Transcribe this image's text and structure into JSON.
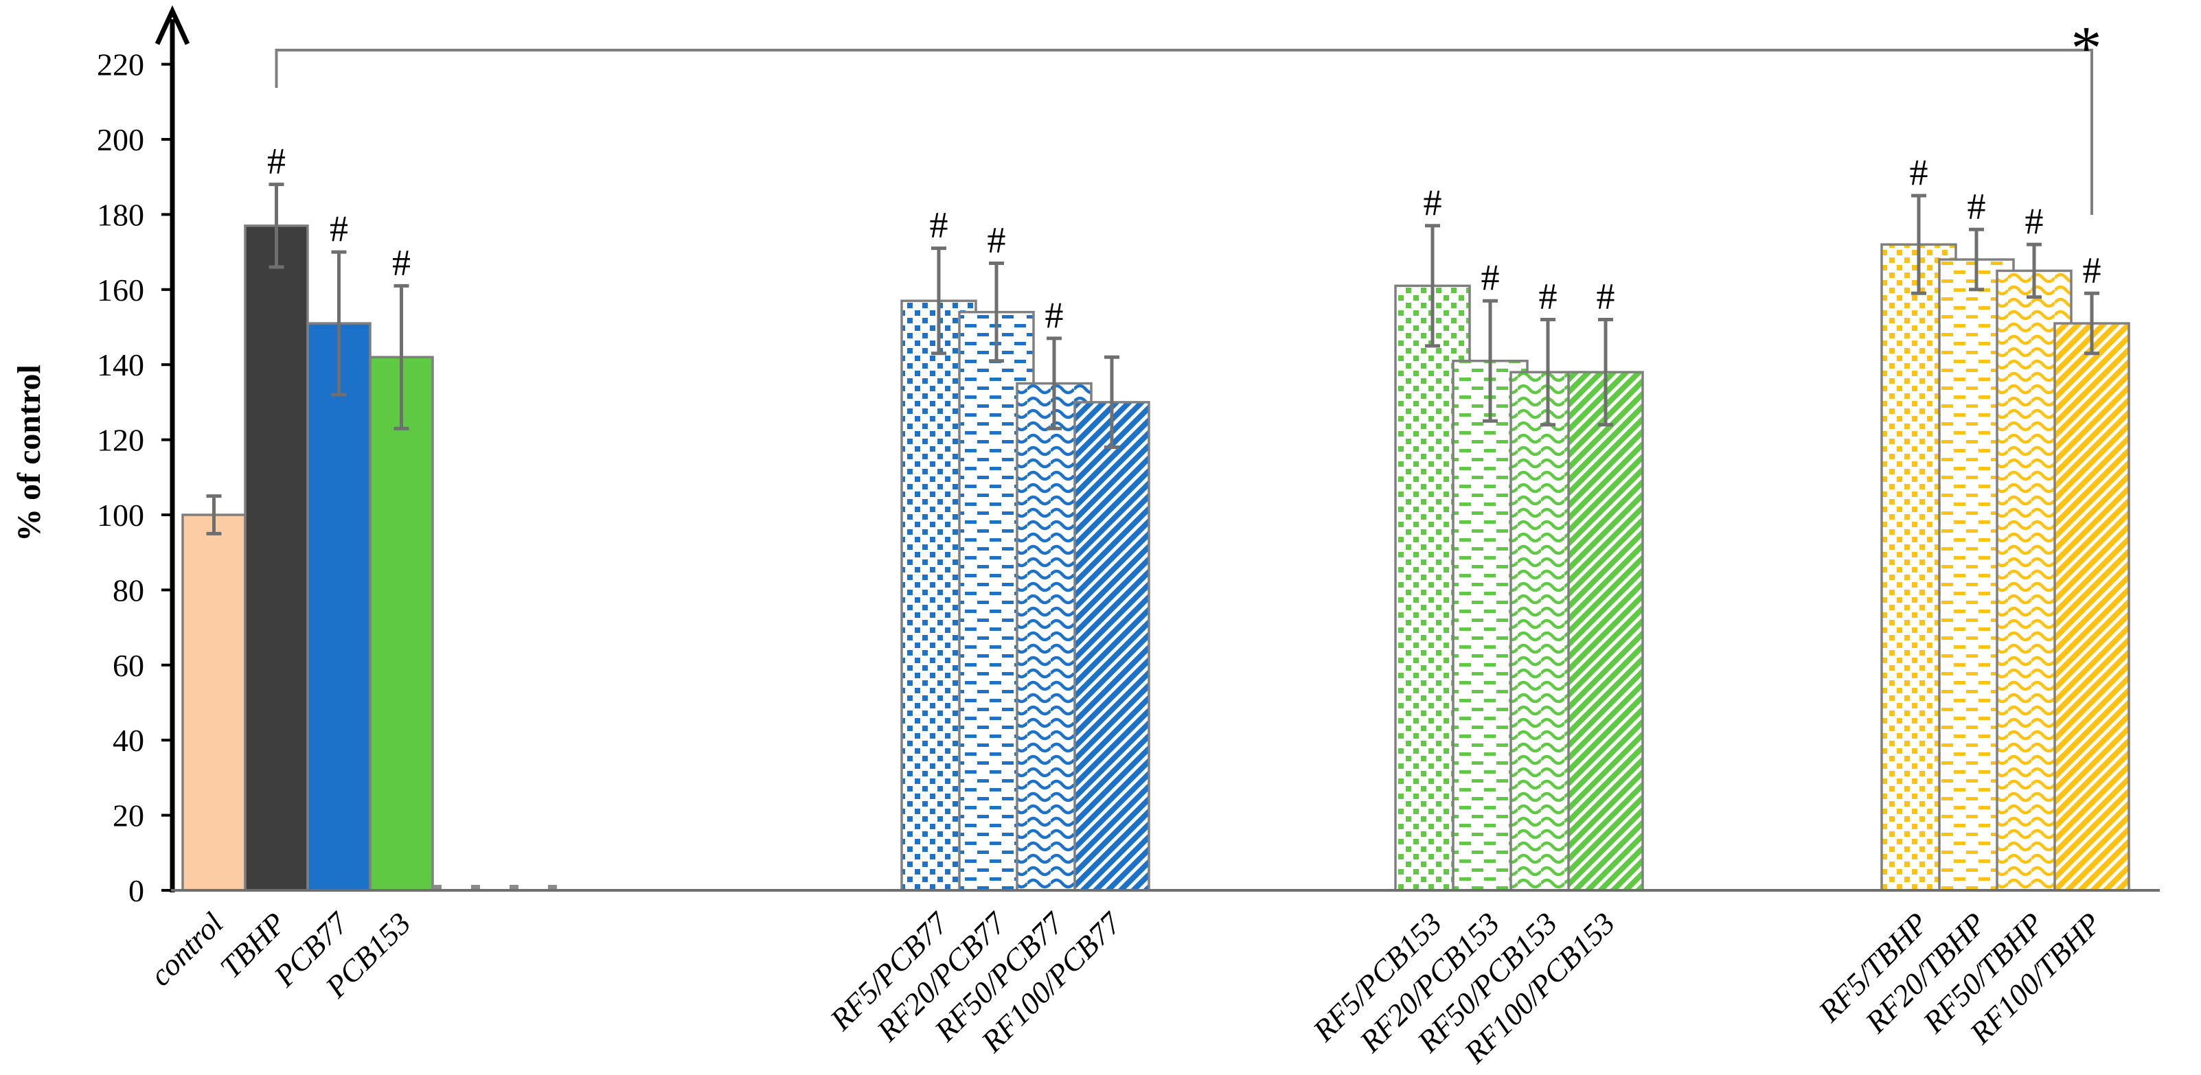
{
  "chart_data": {
    "type": "bar",
    "title": "",
    "xlabel": "",
    "ylabel": "% of control",
    "ylim": [
      0,
      220
    ],
    "yticks": [
      0,
      20,
      40,
      60,
      80,
      100,
      120,
      140,
      160,
      180,
      200,
      220
    ],
    "grid": false,
    "legend": false,
    "colors": {
      "bar_outline": "#7f7f7f",
      "error_bar": "#6f6f6f",
      "axis": "#000000",
      "baseline": "#6e6e6e",
      "bracket": "#7f7f7f",
      "significance_text": "#000000",
      "control_fill": "#fccda5",
      "tbhp_fill": "#3e3e3e",
      "pcb77_blue": "#1c72c8",
      "pcb153_green": "#5fc943",
      "tbhp_gold": "#ffc112"
    },
    "groups": [
      {
        "name": "single-exposure",
        "bars": [
          {
            "label": "control",
            "value": 100,
            "err": 5,
            "fill": "solid",
            "color": "#fccda5",
            "sig": ""
          },
          {
            "label": "TBHP",
            "value": 177,
            "err": 11,
            "fill": "solid",
            "color": "#3e3e3e",
            "sig": "#"
          },
          {
            "label": "PCB77",
            "value": 151,
            "err": 19,
            "fill": "solid",
            "color": "#1c72c8",
            "sig": "#"
          },
          {
            "label": "PCB153",
            "value": 142,
            "err": 19,
            "fill": "solid",
            "color": "#5fc943",
            "sig": "#"
          }
        ]
      },
      {
        "name": "rutin-plus-pcb77",
        "bars": [
          {
            "label": "RF5/PCB77",
            "value": 157,
            "err": 14,
            "fill": "squares",
            "color": "#1c72c8",
            "sig": "#"
          },
          {
            "label": "RF20/PCB77",
            "value": 154,
            "err": 13,
            "fill": "dashes",
            "color": "#1c72c8",
            "sig": "#"
          },
          {
            "label": "RF50/PCB77",
            "value": 135,
            "err": 12,
            "fill": "waves",
            "color": "#1c72c8",
            "sig": "#"
          },
          {
            "label": "RF100/PCB77",
            "value": 130,
            "err": 12,
            "fill": "diagonal",
            "color": "#1c72c8",
            "sig": ""
          }
        ]
      },
      {
        "name": "rutin-plus-pcb153",
        "bars": [
          {
            "label": "RF5/PCB153",
            "value": 161,
            "err": 16,
            "fill": "squares",
            "color": "#5fc943",
            "sig": "#"
          },
          {
            "label": "RF20/PCB153",
            "value": 141,
            "err": 16,
            "fill": "dashes",
            "color": "#5fc943",
            "sig": "#"
          },
          {
            "label": "RF50/PCB153",
            "value": 138,
            "err": 14,
            "fill": "waves",
            "color": "#5fc943",
            "sig": "#"
          },
          {
            "label": "RF100/PCB153",
            "value": 138,
            "err": 14,
            "fill": "diagonal",
            "color": "#5fc943",
            "sig": "#"
          }
        ]
      },
      {
        "name": "rutin-plus-tbhp",
        "bars": [
          {
            "label": "RF5/TBHP",
            "value": 172,
            "err": 13,
            "fill": "squares",
            "color": "#ffc112",
            "sig": "#"
          },
          {
            "label": "RF20/TBHP",
            "value": 168,
            "err": 8,
            "fill": "dashes",
            "color": "#ffc112",
            "sig": "#"
          },
          {
            "label": "RF50/TBHP",
            "value": 165,
            "err": 7,
            "fill": "waves",
            "color": "#ffc112",
            "sig": "#"
          },
          {
            "label": "RF100/TBHP",
            "value": 151,
            "err": 8,
            "fill": "diagonal",
            "color": "#ffc112",
            "sig": "#"
          }
        ]
      }
    ],
    "significance_markers": {
      "hash": "#",
      "star": "*"
    },
    "comparison_bracket": {
      "from": "TBHP",
      "to": "RF100/TBHP",
      "label": "*"
    },
    "empty_category_stub_count": 4
  }
}
